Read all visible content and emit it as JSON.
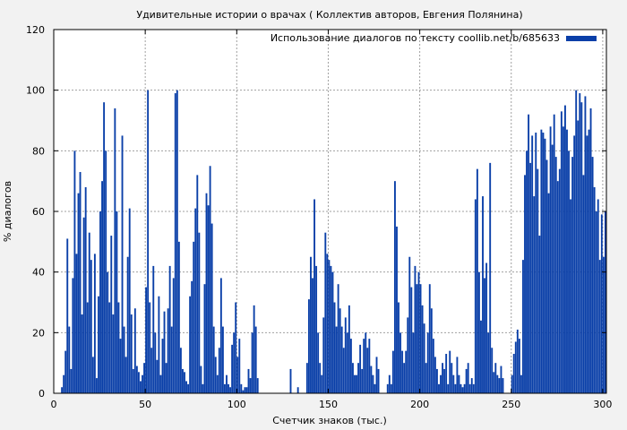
{
  "chart_data": {
    "type": "bar",
    "title": "Удивительные истории о врачах ( Коллектив авторов, Евгения Полянина)",
    "xlabel": "Счетчик знаков (тыс.)",
    "ylabel": "% диалогов",
    "xlim": [
      0,
      302
    ],
    "ylim": [
      0,
      120
    ],
    "x_ticks": [
      0,
      50,
      100,
      150,
      200,
      250,
      300
    ],
    "y_ticks": [
      0,
      20,
      40,
      60,
      80,
      100,
      120
    ],
    "grid": true,
    "legend_position": "top-right",
    "colors": {
      "bar": "#0a3fa8",
      "background": "#f2f2f2",
      "plot": "#ffffff",
      "grid": "#a0a0a0"
    },
    "series": [
      {
        "name": "Использование диалогов по тексту coollib.net/b/685633",
        "points": [
          [
            4,
            2
          ],
          [
            5,
            6
          ],
          [
            6,
            14
          ],
          [
            7,
            51
          ],
          [
            8,
            22
          ],
          [
            9,
            8
          ],
          [
            10,
            38
          ],
          [
            11,
            80
          ],
          [
            12,
            46
          ],
          [
            13,
            66
          ],
          [
            14,
            73
          ],
          [
            15,
            26
          ],
          [
            16,
            58
          ],
          [
            17,
            68
          ],
          [
            18,
            30
          ],
          [
            19,
            53
          ],
          [
            20,
            44
          ],
          [
            21,
            12
          ],
          [
            22,
            46
          ],
          [
            23,
            5
          ],
          [
            24,
            32
          ],
          [
            25,
            60
          ],
          [
            26,
            70
          ],
          [
            27,
            96
          ],
          [
            28,
            80
          ],
          [
            29,
            40
          ],
          [
            30,
            30
          ],
          [
            31,
            52
          ],
          [
            32,
            26
          ],
          [
            33,
            94
          ],
          [
            34,
            60
          ],
          [
            35,
            30
          ],
          [
            36,
            18
          ],
          [
            37,
            85
          ],
          [
            38,
            22
          ],
          [
            39,
            12
          ],
          [
            40,
            45
          ],
          [
            41,
            61
          ],
          [
            42,
            26
          ],
          [
            43,
            8
          ],
          [
            44,
            28
          ],
          [
            45,
            9
          ],
          [
            46,
            7
          ],
          [
            47,
            4
          ],
          [
            48,
            6
          ],
          [
            49,
            10
          ],
          [
            50,
            35
          ],
          [
            51,
            100
          ],
          [
            52,
            30
          ],
          [
            53,
            15
          ],
          [
            54,
            42
          ],
          [
            55,
            20
          ],
          [
            56,
            11
          ],
          [
            57,
            32
          ],
          [
            58,
            6
          ],
          [
            59,
            18
          ],
          [
            60,
            27
          ],
          [
            61,
            10
          ],
          [
            62,
            28
          ],
          [
            63,
            42
          ],
          [
            64,
            22
          ],
          [
            65,
            38
          ],
          [
            66,
            99
          ],
          [
            67,
            100
          ],
          [
            68,
            50
          ],
          [
            69,
            15
          ],
          [
            70,
            8
          ],
          [
            71,
            7
          ],
          [
            72,
            4
          ],
          [
            73,
            3
          ],
          [
            74,
            32
          ],
          [
            75,
            37
          ],
          [
            76,
            50
          ],
          [
            77,
            61
          ],
          [
            78,
            72
          ],
          [
            79,
            53
          ],
          [
            80,
            9
          ],
          [
            81,
            3
          ],
          [
            82,
            36
          ],
          [
            83,
            66
          ],
          [
            84,
            62
          ],
          [
            85,
            75
          ],
          [
            86,
            56
          ],
          [
            87,
            22
          ],
          [
            88,
            12
          ],
          [
            89,
            6
          ],
          [
            90,
            15
          ],
          [
            91,
            38
          ],
          [
            92,
            22
          ],
          [
            93,
            3
          ],
          [
            94,
            6
          ],
          [
            95,
            3
          ],
          [
            96,
            2
          ],
          [
            97,
            16
          ],
          [
            98,
            20
          ],
          [
            99,
            30
          ],
          [
            100,
            12
          ],
          [
            101,
            18
          ],
          [
            102,
            3
          ],
          [
            103,
            1
          ],
          [
            104,
            2
          ],
          [
            105,
            2
          ],
          [
            106,
            8
          ],
          [
            107,
            5
          ],
          [
            108,
            20
          ],
          [
            109,
            29
          ],
          [
            110,
            22
          ],
          [
            111,
            5
          ],
          [
            129,
            8
          ],
          [
            133,
            2
          ],
          [
            138,
            10
          ],
          [
            139,
            31
          ],
          [
            140,
            45
          ],
          [
            141,
            38
          ],
          [
            142,
            64
          ],
          [
            143,
            42
          ],
          [
            144,
            20
          ],
          [
            145,
            10
          ],
          [
            146,
            6
          ],
          [
            147,
            25
          ],
          [
            148,
            53
          ],
          [
            149,
            46
          ],
          [
            150,
            44
          ],
          [
            151,
            42
          ],
          [
            152,
            40
          ],
          [
            153,
            30
          ],
          [
            154,
            22
          ],
          [
            155,
            36
          ],
          [
            156,
            28
          ],
          [
            157,
            22
          ],
          [
            158,
            15
          ],
          [
            159,
            25
          ],
          [
            160,
            20
          ],
          [
            161,
            29
          ],
          [
            162,
            18
          ],
          [
            163,
            10
          ],
          [
            164,
            6
          ],
          [
            165,
            6
          ],
          [
            166,
            10
          ],
          [
            167,
            16
          ],
          [
            168,
            8
          ],
          [
            169,
            18
          ],
          [
            170,
            20
          ],
          [
            171,
            15
          ],
          [
            172,
            18
          ],
          [
            173,
            9
          ],
          [
            174,
            6
          ],
          [
            175,
            3
          ],
          [
            176,
            12
          ],
          [
            177,
            8
          ],
          [
            182,
            3
          ],
          [
            183,
            6
          ],
          [
            184,
            3
          ],
          [
            185,
            14
          ],
          [
            186,
            70
          ],
          [
            187,
            55
          ],
          [
            188,
            30
          ],
          [
            189,
            20
          ],
          [
            190,
            14
          ],
          [
            191,
            10
          ],
          [
            192,
            14
          ],
          [
            193,
            25
          ],
          [
            194,
            45
          ],
          [
            195,
            35
          ],
          [
            196,
            20
          ],
          [
            197,
            42
          ],
          [
            198,
            36
          ],
          [
            199,
            40
          ],
          [
            200,
            36
          ],
          [
            201,
            29
          ],
          [
            202,
            23
          ],
          [
            203,
            10
          ],
          [
            204,
            20
          ],
          [
            205,
            36
          ],
          [
            206,
            28
          ],
          [
            207,
            18
          ],
          [
            208,
            12
          ],
          [
            209,
            8
          ],
          [
            210,
            3
          ],
          [
            211,
            6
          ],
          [
            212,
            10
          ],
          [
            213,
            8
          ],
          [
            214,
            13
          ],
          [
            215,
            3
          ],
          [
            216,
            14
          ],
          [
            217,
            10
          ],
          [
            218,
            6
          ],
          [
            219,
            3
          ],
          [
            220,
            12
          ],
          [
            221,
            6
          ],
          [
            222,
            3
          ],
          [
            223,
            2
          ],
          [
            224,
            3
          ],
          [
            225,
            8
          ],
          [
            226,
            10
          ],
          [
            227,
            3
          ],
          [
            228,
            5
          ],
          [
            229,
            3
          ],
          [
            230,
            64
          ],
          [
            231,
            74
          ],
          [
            232,
            40
          ],
          [
            233,
            24
          ],
          [
            234,
            65
          ],
          [
            235,
            38
          ],
          [
            236,
            43
          ],
          [
            237,
            20
          ],
          [
            238,
            76
          ],
          [
            239,
            15
          ],
          [
            240,
            7
          ],
          [
            241,
            10
          ],
          [
            242,
            6
          ],
          [
            243,
            5
          ],
          [
            244,
            9
          ],
          [
            245,
            5
          ],
          [
            250,
            6
          ],
          [
            251,
            13
          ],
          [
            252,
            17
          ],
          [
            253,
            21
          ],
          [
            254,
            18
          ],
          [
            255,
            6
          ],
          [
            256,
            44
          ],
          [
            257,
            72
          ],
          [
            258,
            80
          ],
          [
            259,
            92
          ],
          [
            260,
            76
          ],
          [
            261,
            85
          ],
          [
            262,
            65
          ],
          [
            263,
            86
          ],
          [
            264,
            74
          ],
          [
            265,
            52
          ],
          [
            266,
            87
          ],
          [
            267,
            86
          ],
          [
            268,
            84
          ],
          [
            269,
            77
          ],
          [
            270,
            66
          ],
          [
            271,
            88
          ],
          [
            272,
            82
          ],
          [
            273,
            92
          ],
          [
            274,
            78
          ],
          [
            275,
            70
          ],
          [
            276,
            74
          ],
          [
            277,
            93
          ],
          [
            278,
            88
          ],
          [
            279,
            95
          ],
          [
            280,
            87
          ],
          [
            281,
            80
          ],
          [
            282,
            64
          ],
          [
            283,
            78
          ],
          [
            284,
            85
          ],
          [
            285,
            100
          ],
          [
            286,
            90
          ],
          [
            287,
            99
          ],
          [
            288,
            96
          ],
          [
            289,
            72
          ],
          [
            290,
            98
          ],
          [
            291,
            85
          ],
          [
            292,
            87
          ],
          [
            293,
            94
          ],
          [
            294,
            78
          ],
          [
            295,
            68
          ],
          [
            296,
            60
          ],
          [
            297,
            64
          ],
          [
            298,
            44
          ],
          [
            299,
            59
          ],
          [
            300,
            45
          ],
          [
            301,
            60
          ]
        ]
      }
    ]
  }
}
